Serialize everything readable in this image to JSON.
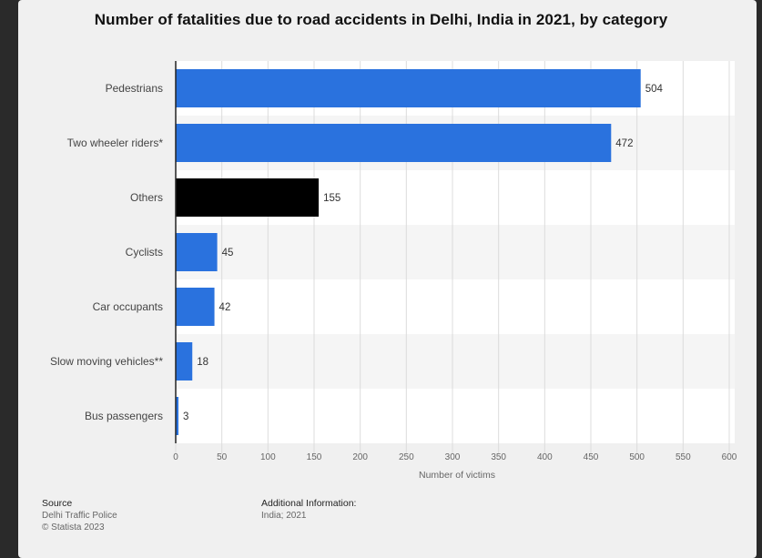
{
  "title": "Number of fatalities due to road accidents in Delhi, India in 2021, by category",
  "chart_data": {
    "type": "bar",
    "orientation": "horizontal",
    "title": "Number of fatalities due to road accidents in Delhi, India in 2021, by category",
    "xlabel": "Number of victims",
    "ylabel": "",
    "xlim": [
      0,
      600
    ],
    "xticks": [
      0,
      50,
      100,
      150,
      200,
      250,
      300,
      350,
      400,
      450,
      500,
      550,
      600
    ],
    "grid": true,
    "categories": [
      "Pedestrians",
      "Two wheeler riders*",
      "Others",
      "Cyclists",
      "Car occupants",
      "Slow moving vehicles**",
      "Bus passengers"
    ],
    "values": [
      504,
      472,
      155,
      45,
      42,
      18,
      3
    ],
    "colors": [
      "#2a72de",
      "#2a72de",
      "#000000",
      "#2a72de",
      "#2a72de",
      "#2a72de",
      "#2a72de"
    ]
  },
  "footer": {
    "source_heading": "Source",
    "source_lines": [
      "Delhi Traffic Police",
      "© Statista 2023"
    ],
    "info_heading": "Additional Information:",
    "info_lines": [
      "India; 2021"
    ]
  }
}
